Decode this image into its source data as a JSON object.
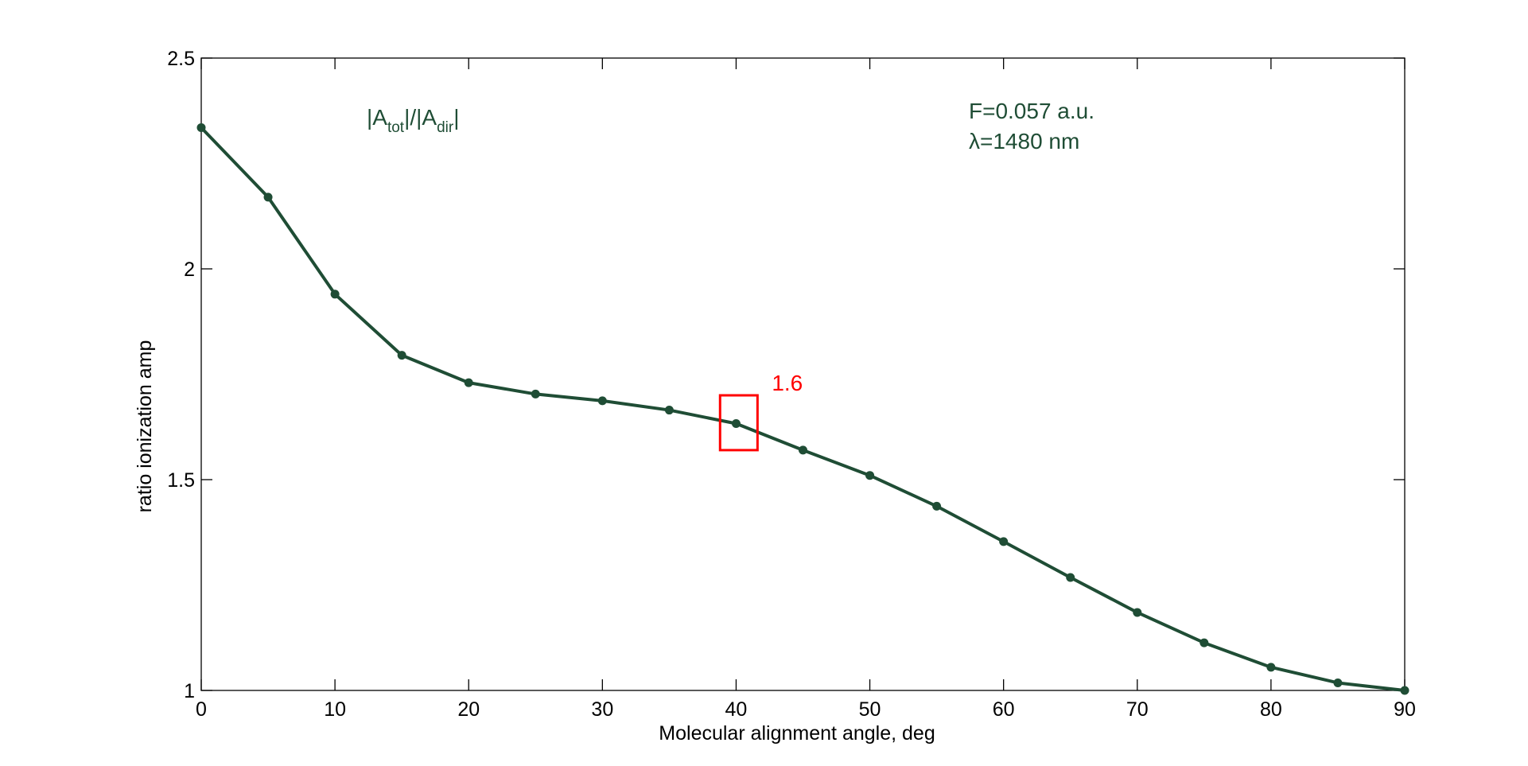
{
  "chart_data": {
    "type": "line",
    "title": "",
    "xlabel": "Molecular alignment angle, deg",
    "ylabel": "ratio ionization amp",
    "xlim": [
      0,
      90
    ],
    "ylim": [
      1,
      2.5
    ],
    "xticks": [
      0,
      10,
      20,
      30,
      40,
      50,
      60,
      70,
      80,
      90
    ],
    "yticks": [
      1,
      1.5,
      2,
      2.5
    ],
    "ytick_labels": [
      "1",
      "1.5",
      "2",
      "2.5"
    ],
    "grid": false,
    "series": [
      {
        "name": "|A_tot|/|A_dir|",
        "color": "#1f4d35",
        "x": [
          0,
          5,
          10,
          15,
          20,
          25,
          30,
          35,
          40,
          45,
          50,
          55,
          60,
          65,
          70,
          75,
          80,
          85,
          90
        ],
        "y": [
          2.335,
          2.17,
          1.94,
          1.795,
          1.73,
          1.703,
          1.687,
          1.665,
          1.633,
          1.57,
          1.51,
          1.437,
          1.353,
          1.268,
          1.185,
          1.113,
          1.055,
          1.018,
          1.0
        ]
      }
    ],
    "annotations": {
      "legend_main": "|A",
      "legend_sub1": "tot",
      "legend_mid": "|/|A",
      "legend_sub2": "dir",
      "legend_end": "|",
      "field": "F=0.057 a.u.",
      "wavelength": "λ=1480 nm",
      "highlight_label": "1.6",
      "highlight_x_range": [
        38.8,
        41.6
      ],
      "highlight_y_range": [
        1.57,
        1.7
      ],
      "highlight_color": "#ff0000"
    }
  }
}
